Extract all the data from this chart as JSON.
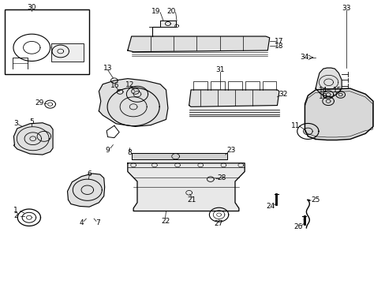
{
  "title": "",
  "background_color": "#ffffff",
  "border_color": "#000000",
  "line_color": "#000000",
  "text_color": "#000000",
  "fig_width": 4.89,
  "fig_height": 3.6,
  "dpi": 100
}
